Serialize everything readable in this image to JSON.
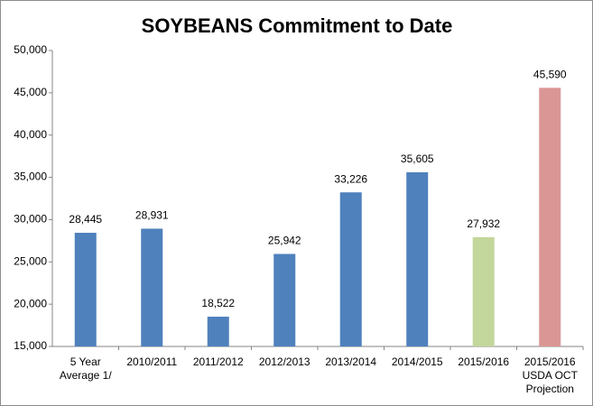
{
  "chart_data": {
    "type": "bar",
    "title": "SOYBEANS Commitment to Date",
    "categories": [
      "5 Year Average 1/",
      "2010/2011",
      "2011/2012",
      "2012/2013",
      "2013/2014",
      "2014/2015",
      "2015/2016",
      "2015/2016 USDA OCT Projection"
    ],
    "values": [
      28445,
      28931,
      18522,
      25942,
      33226,
      35605,
      27932,
      45590
    ],
    "value_labels": [
      "28,445",
      "28,931",
      "18,522",
      "25,942",
      "33,226",
      "35,605",
      "27,932",
      "45,590"
    ],
    "colors": [
      "#4f81bd",
      "#4f81bd",
      "#4f81bd",
      "#4f81bd",
      "#4f81bd",
      "#4f81bd",
      "#c3d69b",
      "#d99694"
    ],
    "ylim": [
      15000,
      50000
    ],
    "yticks": [
      {
        "value": 15000,
        "label": "15,000"
      },
      {
        "value": 20000,
        "label": "20,000"
      },
      {
        "value": 25000,
        "label": "25,000"
      },
      {
        "value": 30000,
        "label": "30,000"
      },
      {
        "value": 35000,
        "label": "35,000"
      },
      {
        "value": 40000,
        "label": "40,000"
      },
      {
        "value": 45000,
        "label": "45,000"
      },
      {
        "value": 50000,
        "label": "50,000"
      }
    ],
    "grid": false
  }
}
